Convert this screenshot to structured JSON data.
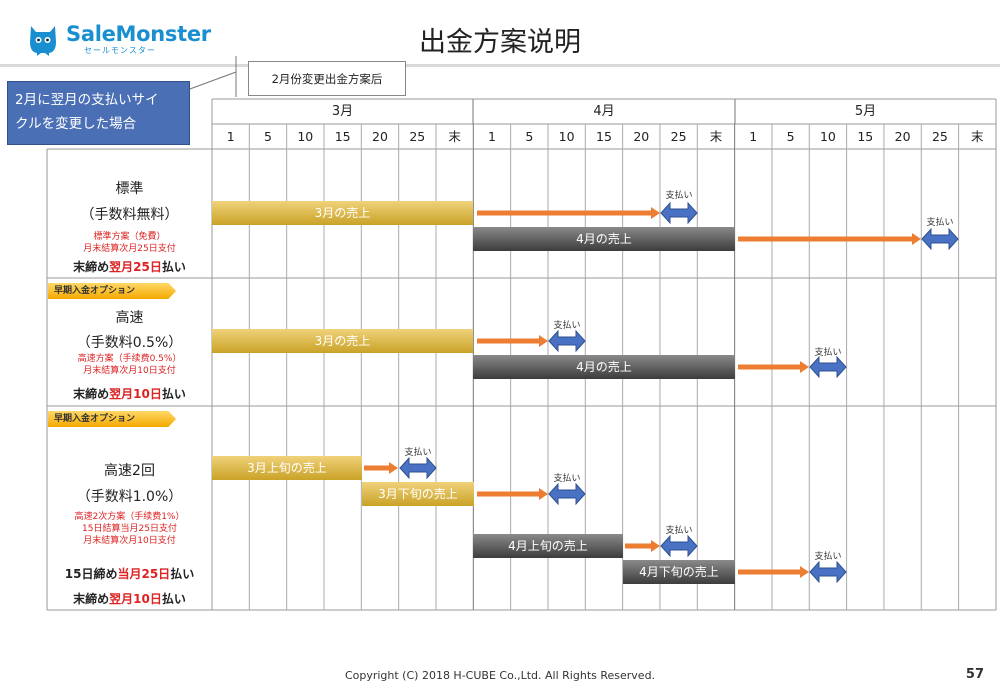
{
  "logo": {
    "brand": "SaleMonster",
    "sub": "セールモンスター",
    "color": "#1a8fd0"
  },
  "title": "出金方案说明",
  "callout": "2月份変更出金方案后",
  "blue_note": {
    "line1": "2月に翌月の支払いサイ",
    "line2": "クルを変更した場合"
  },
  "months": [
    "3月",
    "4月",
    "5月"
  ],
  "days": [
    "1",
    "5",
    "10",
    "15",
    "20",
    "25",
    "末"
  ],
  "rows": [
    {
      "tag": "",
      "name": "標準",
      "fee": "（手数料無料）",
      "red_lines": [
        "標準方案（免費）",
        "月末結算次月25日支付"
      ],
      "close_lines": [
        {
          "pre": "末締め",
          "red": "翌月25日",
          "post": "払い"
        }
      ]
    },
    {
      "tag": "早期入金オプション",
      "name": "高速",
      "fee": "（手数料0.5%）",
      "red_lines": [
        "高速方案（手续费0.5%）",
        "月末結算次月10日支付"
      ],
      "close_lines": [
        {
          "pre": "末締め",
          "red": "翌月10日",
          "post": "払い"
        }
      ]
    },
    {
      "tag": "早期入金オプション",
      "name": "高速2回",
      "fee": "（手数料1.0%）",
      "red_lines": [
        "高速2次方案（手续费1%）",
        "15日結算当月25日支付",
        "月末結算次月10日支付"
      ],
      "close_lines": [
        {
          "pre": "15日締め",
          "red": "当月25日",
          "post": "払い"
        },
        {
          "pre": "末締め",
          "red": "翌月10日",
          "post": "払い"
        }
      ]
    }
  ],
  "bars": {
    "mar_sales": "3月の売上",
    "apr_sales": "4月の売上",
    "mar_first": "3月上旬の売上",
    "mar_second": "3月下旬の売上",
    "apr_first": "4月上旬の売上",
    "apr_second": "4月下旬の売上"
  },
  "pay_label": "支払い",
  "colors": {
    "arrow": "#ed7d31",
    "payment": "#4a72c4",
    "gold": "#d4ad37",
    "dark": "#555555",
    "red": "#dd2222"
  },
  "footer": "Copyright (C) 2018 H-CUBE Co.,Ltd. All Rights Reserved.",
  "page_number": "57"
}
